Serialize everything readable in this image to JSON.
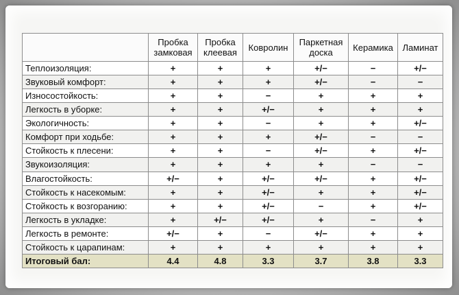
{
  "table": {
    "headers": [
      "",
      "Пробка\nзамковая",
      "Пробка\nклеевая",
      "Ковролин",
      "Паркетная\nдоска",
      "Керамика",
      "Ламинат"
    ],
    "rows": [
      {
        "label": "Теплоизоляция:",
        "values": [
          "+",
          "+",
          "+",
          "+/−",
          "−",
          "+/−"
        ]
      },
      {
        "label": "Звуковый комфорт:",
        "values": [
          "+",
          "+",
          "+",
          "+/−",
          "−",
          "−"
        ]
      },
      {
        "label": "Износостойкость:",
        "values": [
          "+",
          "+",
          "−",
          "+",
          "+",
          "+"
        ]
      },
      {
        "label": "Легкость в уборке:",
        "values": [
          "+",
          "+",
          "+/−",
          "+",
          "+",
          "+"
        ]
      },
      {
        "label": "Экологичность:",
        "values": [
          "+",
          "+",
          "−",
          "+",
          "+",
          "+/−"
        ]
      },
      {
        "label": "Комфорт при ходьбе:",
        "values": [
          "+",
          "+",
          "+",
          "+/−",
          "−",
          "−"
        ]
      },
      {
        "label": "Стойкость к плесени:",
        "values": [
          "+",
          "+",
          "−",
          "+/−",
          "+",
          "+/−"
        ]
      },
      {
        "label": "Звукоизоляция:",
        "values": [
          "+",
          "+",
          "+",
          "+",
          "−",
          "−"
        ]
      },
      {
        "label": "Влагостойкость:",
        "values": [
          "+/−",
          "+",
          "+/−",
          "+/−",
          "+",
          "+/−"
        ]
      },
      {
        "label": "Стойкость к насекомым:",
        "values": [
          "+",
          "+",
          "+/−",
          "+",
          "+",
          "+/−"
        ]
      },
      {
        "label": "Стойкость к возгоранию:",
        "values": [
          "+",
          "+",
          "+/−",
          "−",
          "+",
          "+/−"
        ]
      },
      {
        "label": "Легкость в укладке:",
        "values": [
          "+",
          "+/−",
          "+/−",
          "+",
          "−",
          "+"
        ]
      },
      {
        "label": "Легкость в ремонте:",
        "values": [
          "+/−",
          "+",
          "−",
          "+/−",
          "+",
          "+"
        ]
      },
      {
        "label": "Стойкость к царапинам:",
        "values": [
          "+",
          "+",
          "+",
          "+",
          "+",
          "+"
        ]
      }
    ],
    "footer": {
      "label": "Итоговый бал:",
      "values": [
        "4.4",
        "4.8",
        "3.3",
        "3.7",
        "3.8",
        "3.3"
      ]
    }
  }
}
